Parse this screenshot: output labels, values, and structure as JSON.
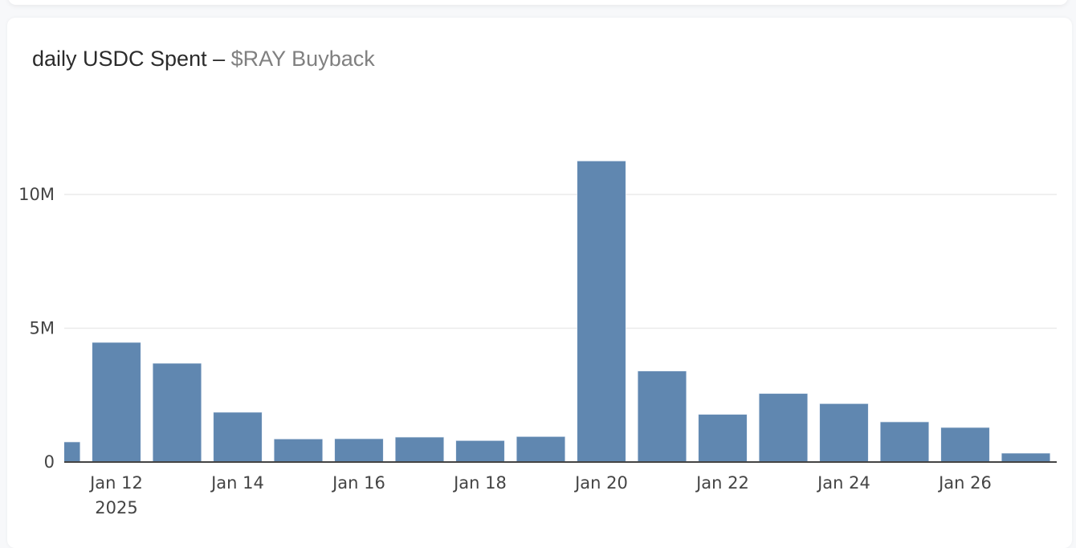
{
  "title": {
    "main": "daily USDC Spent – ",
    "sub": "$RAY Buyback"
  },
  "colors": {
    "bar": "#6087b0",
    "bar_outline": "#e4ecf5",
    "grid": "#ebebeb",
    "axis": "#444444",
    "title_main": "#2b2b2b",
    "title_sub": "#808080"
  },
  "chart_data": {
    "type": "bar",
    "title": "daily USDC Spent – $RAY Buyback",
    "xlabel": "",
    "ylabel": "",
    "categories": [
      "Jan 11",
      "Jan 12",
      "Jan 13",
      "Jan 14",
      "Jan 15",
      "Jan 16",
      "Jan 17",
      "Jan 18",
      "Jan 19",
      "Jan 20",
      "Jan 21",
      "Jan 22",
      "Jan 23",
      "Jan 24",
      "Jan 25",
      "Jan 26",
      "Jan 27"
    ],
    "values": [
      750000,
      4470000,
      3690000,
      1860000,
      860000,
      870000,
      930000,
      800000,
      950000,
      11250000,
      3400000,
      1780000,
      2560000,
      2180000,
      1500000,
      1290000,
      330000
    ],
    "ylim": [
      0,
      12400000
    ],
    "yticks": [
      {
        "value": 0,
        "label": "0"
      },
      {
        "value": 5000000,
        "label": "5M"
      },
      {
        "value": 10000000,
        "label": "10M"
      }
    ],
    "xticks": [
      {
        "index": 1,
        "label": "Jan 12",
        "sublabel": "2025"
      },
      {
        "index": 3,
        "label": "Jan 14"
      },
      {
        "index": 5,
        "label": "Jan 16"
      },
      {
        "index": 7,
        "label": "Jan 18"
      },
      {
        "index": 9,
        "label": "Jan 20"
      },
      {
        "index": 11,
        "label": "Jan 22"
      },
      {
        "index": 13,
        "label": "Jan 24"
      },
      {
        "index": 15,
        "label": "Jan 26"
      }
    ],
    "grid": true,
    "legend": null,
    "year": "2025"
  }
}
